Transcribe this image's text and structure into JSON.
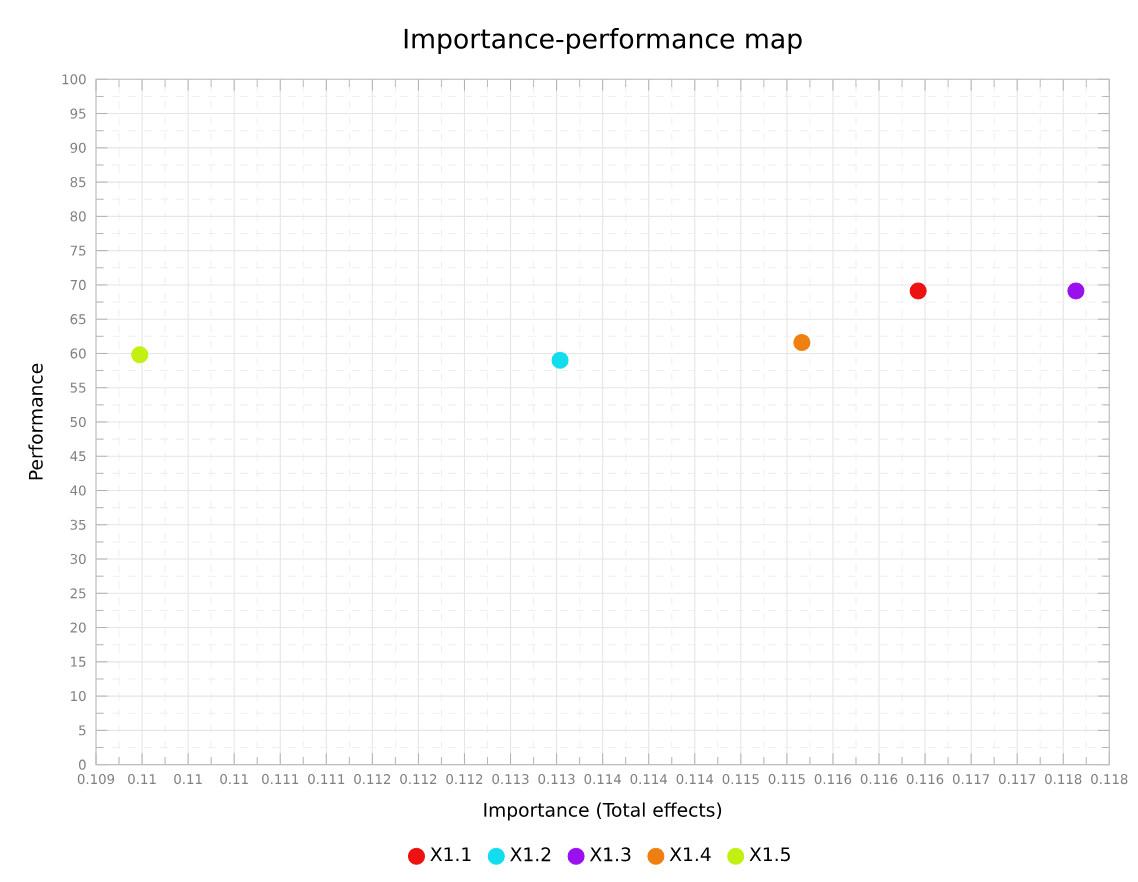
{
  "chart_data": {
    "type": "scatter",
    "title": "Importance-performance map",
    "xlabel": "Importance (Total effects)",
    "ylabel": "Performance",
    "series": [
      {
        "name": "X1.1",
        "color": "#ee1111",
        "x": [
          0.11634
        ],
        "values": [
          69.1
        ]
      },
      {
        "name": "X1.2",
        "color": "#11ddee",
        "x": [
          0.11323
        ],
        "values": [
          59.0
        ]
      },
      {
        "name": "X1.3",
        "color": "#9911ee",
        "x": [
          0.11771
        ],
        "values": [
          69.1
        ]
      },
      {
        "name": "X1.4",
        "color": "#f07f11",
        "x": [
          0.11533
        ],
        "values": [
          61.6
        ]
      },
      {
        "name": "X1.5",
        "color": "#c2f011",
        "x": [
          0.10958
        ],
        "values": [
          59.8
        ]
      }
    ],
    "xlim": [
      0.1092,
      0.118
    ],
    "ylim": [
      0,
      100
    ],
    "xticks": [
      {
        "value": 0.1092,
        "label": "0.109"
      },
      {
        "value": 0.1096,
        "label": "0.11"
      },
      {
        "value": 0.11,
        "label": "0.11"
      },
      {
        "value": 0.1104,
        "label": "0.11"
      },
      {
        "value": 0.1108,
        "label": "0.111"
      },
      {
        "value": 0.1112,
        "label": "0.111"
      },
      {
        "value": 0.1116,
        "label": "0.112"
      },
      {
        "value": 0.112,
        "label": "0.112"
      },
      {
        "value": 0.1124,
        "label": "0.112"
      },
      {
        "value": 0.1128,
        "label": "0.113"
      },
      {
        "value": 0.1132,
        "label": "0.113"
      },
      {
        "value": 0.1136,
        "label": "0.114"
      },
      {
        "value": 0.114,
        "label": "0.114"
      },
      {
        "value": 0.1144,
        "label": "0.114"
      },
      {
        "value": 0.1148,
        "label": "0.115"
      },
      {
        "value": 0.1152,
        "label": "0.115"
      },
      {
        "value": 0.1156,
        "label": "0.116"
      },
      {
        "value": 0.116,
        "label": "0.116"
      },
      {
        "value": 0.1164,
        "label": "0.116"
      },
      {
        "value": 0.1168,
        "label": "0.117"
      },
      {
        "value": 0.1172,
        "label": "0.117"
      },
      {
        "value": 0.1176,
        "label": "0.118"
      },
      {
        "value": 0.118,
        "label": "0.118"
      }
    ],
    "yticks": [
      0,
      5,
      10,
      15,
      20,
      25,
      30,
      35,
      40,
      45,
      50,
      55,
      60,
      65,
      70,
      75,
      80,
      85,
      90,
      95,
      100
    ],
    "grid": true,
    "legend": "bottom",
    "marker": "circle"
  }
}
